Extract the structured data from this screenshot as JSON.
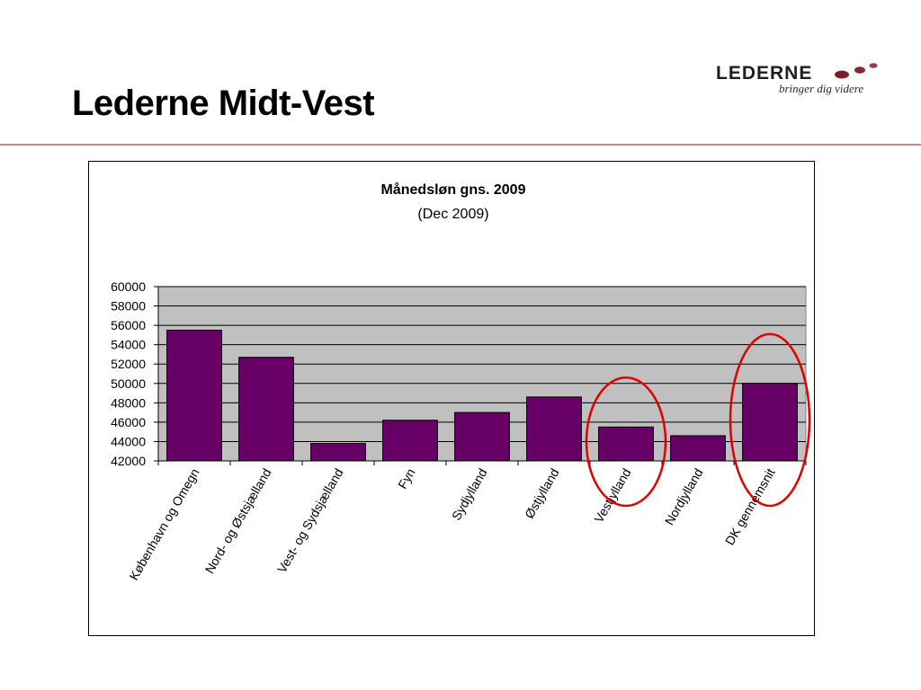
{
  "slide": {
    "title": "Lederne Midt-Vest"
  },
  "logo": {
    "name": "LEDERNE",
    "tagline": "bringer dig videre"
  },
  "colors": {
    "bar_fill": "#660066",
    "plot_background": "#c0c0c0",
    "highlight_circle": "#e00000",
    "divider": "#b98a86"
  },
  "chart_data": {
    "type": "bar",
    "title": "Månedsløn gns. 2009",
    "subtitle": "(Dec 2009)",
    "categories": [
      "København og Omegn",
      "Nord- og Østsjælland",
      "Vest- og Sydsjælland",
      "Fyn",
      "Sydjylland",
      "Østjylland",
      "Vestjylland",
      "Nordjylland",
      "DK gennemsnit"
    ],
    "values": [
      55500,
      52700,
      43800,
      46200,
      47000,
      48600,
      45500,
      44600,
      50000
    ],
    "ylim": [
      42000,
      60000
    ],
    "yticks": [
      "60000",
      "58000",
      "56000",
      "54000",
      "52000",
      "50000",
      "48000",
      "46000",
      "44000",
      "42000"
    ],
    "grid": true,
    "legend": "none",
    "highlighted_categories": [
      "Vestjylland",
      "DK gennemsnit"
    ]
  }
}
